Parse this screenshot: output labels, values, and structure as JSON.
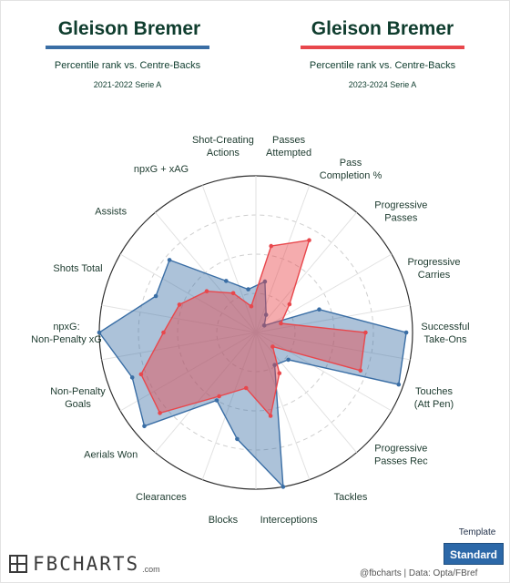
{
  "left": {
    "name": "Gleison Bremer",
    "subtitle": "Percentile rank vs. Centre-Backs",
    "season": "2021-2022 Serie A",
    "color": "#3a6ea5"
  },
  "right": {
    "name": "Gleison Bremer",
    "subtitle": "Percentile rank vs. Centre-Backs",
    "season": "2023-2024 Serie A",
    "color": "#e8474c"
  },
  "template": {
    "label": "Template",
    "button_label": "Standard"
  },
  "footer": {
    "logo": "FBCHARTS",
    "logo_suffix": ".com",
    "credit": "@fbcharts | Data: Opta/FBref"
  },
  "chart_data": {
    "type": "radar",
    "axis_range": [
      0,
      100
    ],
    "grid": true,
    "categories": [
      "Passes Attempted",
      "Pass Completion %",
      "Progressive Passes",
      "Progressive Carries",
      "Successful Take-Ons",
      "Touches (Att Pen)",
      "Progressive Passes Rec",
      "Tackles",
      "Interceptions",
      "Blocks",
      "Clearances",
      "Aerials Won",
      "Non-Penalty Goals",
      "npxG: Non-Penalty xG",
      "Shots Total",
      "Assists",
      "npxG + xAG",
      "Shot-Creating Actions"
    ],
    "series": [
      {
        "name": "2021-2022 Serie A",
        "color": "#3a6ea5",
        "values": [
          33,
          13,
          7,
          43,
          96,
          97,
          27,
          24,
          100,
          69,
          50,
          93,
          84,
          100,
          68,
          72,
          38,
          28
        ]
      },
      {
        "name": "2023-2024 Serie A",
        "color": "#e8474c",
        "values": [
          56,
          68,
          28,
          17,
          70,
          71,
          14,
          30,
          54,
          36,
          47,
          80,
          78,
          59,
          52,
          41,
          29,
          17
        ]
      }
    ]
  }
}
